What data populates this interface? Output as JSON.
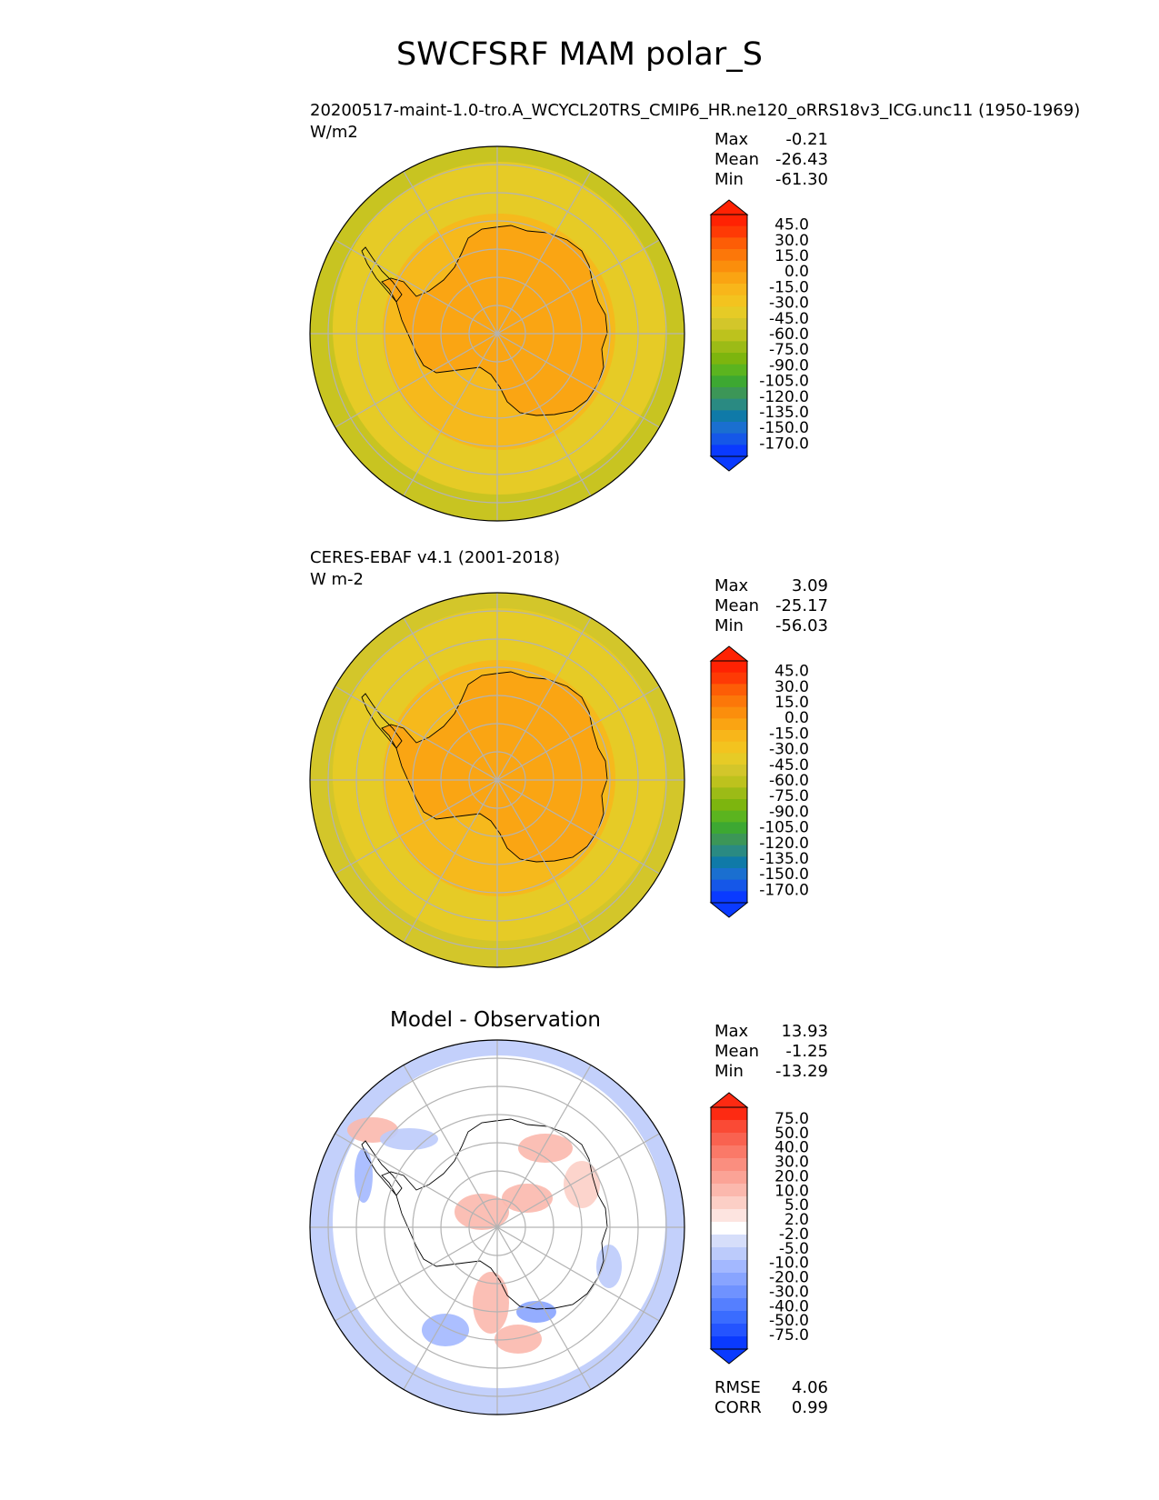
{
  "title": "SWCFSRF MAM polar_S",
  "palettes": {
    "field": [
      "#0a3aff",
      "#1557e8",
      "#1a6fd0",
      "#0f7aa8",
      "#2a8a82",
      "#3c9657",
      "#3da832",
      "#5bb41f",
      "#7db50e",
      "#9cbb16",
      "#bdc21d",
      "#d3c62a",
      "#e6cb26",
      "#f3c31f",
      "#f8b61a",
      "#faa412",
      "#fb8e0c",
      "#fc7709",
      "#fd5d06",
      "#fe3a05",
      "#ff2203"
    ],
    "diff": [
      "#0a3aff",
      "#2454ff",
      "#3a6cff",
      "#557fff",
      "#6f92ff",
      "#88a4ff",
      "#a3b8ff",
      "#bccbfb",
      "#d6defa",
      "#ffffff",
      "#fde4e0",
      "#fccfc6",
      "#fbb8ad",
      "#fba396",
      "#fa8e7f",
      "#fa7968",
      "#f96250",
      "#fa4a35",
      "#fd2a12"
    ]
  },
  "panels": [
    {
      "id": "test",
      "title_line1": "20200517-maint-1.0-tro.A_WCYCL20TRS_CMIP6_HR.ne120_oRRS18v3_ICG.unc11 (1950-1969)",
      "title_line2": "W/m2",
      "stats": {
        "Max": "-0.21",
        "Mean": "-26.43",
        "Min": "-61.30"
      },
      "colorbar_labels": [
        "45.0",
        "30.0",
        "15.0",
        "0.0",
        "-15.0",
        "-30.0",
        "-45.0",
        "-60.0",
        "-75.0",
        "-90.0",
        "-105.0",
        "-120.0",
        "-135.0",
        "-150.0",
        "-170.0"
      ],
      "map_colors": {
        "outer": "#c8c421",
        "ocean": "#e6cb26",
        "shelf": "#f6b91c",
        "continent": "#faa513"
      }
    },
    {
      "id": "ref",
      "title_line1": "CERES-EBAF v4.1 (2001-2018)",
      "title_line2": "W m-2",
      "stats": {
        "Max": "3.09",
        "Mean": "-25.17",
        "Min": "-56.03"
      },
      "colorbar_labels": [
        "45.0",
        "30.0",
        "15.0",
        "0.0",
        "-15.0",
        "-30.0",
        "-45.0",
        "-60.0",
        "-75.0",
        "-90.0",
        "-105.0",
        "-120.0",
        "-135.0",
        "-150.0",
        "-170.0"
      ],
      "map_colors": {
        "outer": "#d3c62a",
        "ocean": "#e6cb26",
        "shelf": "#f6b91c",
        "continent": "#faa513"
      }
    },
    {
      "id": "diff",
      "title": "Model - Observation",
      "stats": {
        "Max": "13.93",
        "Mean": "-1.25",
        "Min": "-13.29"
      },
      "colorbar_labels": [
        "75.0",
        "50.0",
        "40.0",
        "30.0",
        "20.0",
        "10.0",
        "5.0",
        "2.0",
        "-2.0",
        "-5.0",
        "-10.0",
        "-20.0",
        "-30.0",
        "-40.0",
        "-50.0",
        "-75.0"
      ],
      "metrics": {
        "RMSE": "4.06",
        "CORR": "0.99"
      },
      "map_colors": {
        "outer": "#c3d0fb",
        "ocean": "#ffffff",
        "shelf": "#ffffff",
        "continent": "#ffffff"
      }
    }
  ],
  "chart_data": [
    {
      "type": "heatmap",
      "projection": "south polar stereographic",
      "title": "20200517-maint-1.0-tro.A_WCYCL20TRS_CMIP6_HR.ne120_oRRS18v3_ICG.unc11 (1950-1969)",
      "units": "W/m2",
      "max": -0.21,
      "mean": -26.43,
      "min": -61.3
    },
    {
      "type": "heatmap",
      "projection": "south polar stereographic",
      "title": "CERES-EBAF v4.1 (2001-2018)",
      "units": "W m-2",
      "max": 3.09,
      "mean": -25.17,
      "min": -56.03
    },
    {
      "type": "heatmap",
      "projection": "south polar stereographic",
      "title": "Model - Observation",
      "max": 13.93,
      "mean": -1.25,
      "min": -13.29,
      "rmse": 4.06,
      "corr": 0.99
    }
  ]
}
